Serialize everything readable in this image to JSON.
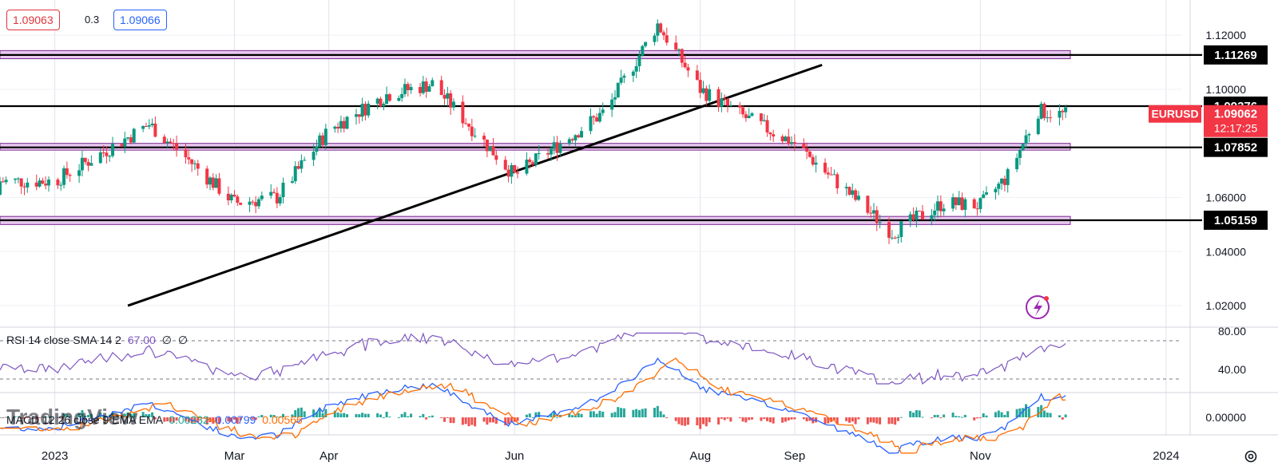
{
  "header": {
    "bid_price": "1.09063",
    "spread": "0.3",
    "ask_price": "1.09066"
  },
  "symbol": {
    "name": "EURUSD",
    "last_price": "1.09062",
    "countdown": "12:17:25"
  },
  "levels": [
    {
      "label": "1.11269",
      "value": 1.11269,
      "zone": [
        1.1113,
        1.1143
      ]
    },
    {
      "label": "1.09376",
      "value": 1.09376,
      "zone": null
    },
    {
      "label": "1.07852",
      "value": 1.07852,
      "zone": [
        1.0775,
        1.08
      ]
    },
    {
      "label": "1.05159",
      "value": 1.05159,
      "zone": [
        1.05,
        1.053
      ]
    }
  ],
  "price_axis": {
    "ticks": [
      "1.12000",
      "1.10000",
      "1.06000",
      "1.04000",
      "1.02000"
    ],
    "tick_values": [
      1.12,
      1.1,
      1.06,
      1.04,
      1.02
    ]
  },
  "time_axis": {
    "labels": [
      "2023",
      "Mar",
      "Apr",
      "Jun",
      "Aug",
      "Sep",
      "Nov",
      "2024"
    ]
  },
  "rsi": {
    "label": "RSI 14 close SMA 14 2",
    "value": "67.00",
    "extra1": "∅",
    "extra2": "∅",
    "ticks": [
      "80.00",
      "40.00"
    ]
  },
  "macd": {
    "label": "MACD 12 26 close 9 EMA EMA",
    "histogram": "0.00232",
    "macd_value": "0.00799",
    "signal_value": "0.00566",
    "ticks": [
      "0.00000"
    ]
  },
  "watermark": "TradingView",
  "colors": {
    "up": "#089981",
    "down": "#f23645",
    "zone_fill": "#e8c7ef",
    "zone_border": "#7a2b8f",
    "rsi_line": "#7e57c2",
    "macd_line": "#2962ff",
    "signal_line": "#ff6d00",
    "label_black": "#000000",
    "symbol_red": "#f23645"
  },
  "chart_data": {
    "type": "candlestick",
    "instrument": "EURUSD",
    "price_range": [
      1.015,
      1.133
    ],
    "key_closes": [
      {
        "x": "2023-01-01",
        "y": 1.066
      },
      {
        "x": "2023-02-01",
        "y": 1.087
      },
      {
        "x": "2023-02-10",
        "y": 1.078
      },
      {
        "x": "2023-03-01",
        "y": 1.058
      },
      {
        "x": "2023-03-15",
        "y": 1.06
      },
      {
        "x": "2023-04-01",
        "y": 1.085
      },
      {
        "x": "2023-04-20",
        "y": 1.098
      },
      {
        "x": "2023-05-05",
        "y": 1.102
      },
      {
        "x": "2023-06-01",
        "y": 1.068
      },
      {
        "x": "2023-07-01",
        "y": 1.092
      },
      {
        "x": "2023-07-18",
        "y": 1.124
      },
      {
        "x": "2023-08-01",
        "y": 1.1
      },
      {
        "x": "2023-08-15",
        "y": 1.09
      },
      {
        "x": "2023-09-01",
        "y": 1.08
      },
      {
        "x": "2023-10-03",
        "y": 1.047
      },
      {
        "x": "2023-10-20",
        "y": 1.058
      },
      {
        "x": "2023-11-01",
        "y": 1.057
      },
      {
        "x": "2023-11-10",
        "y": 1.068
      },
      {
        "x": "2023-11-20",
        "y": 1.092
      },
      {
        "x": "2023-11-28",
        "y": 1.09062
      }
    ],
    "trendline": {
      "from": {
        "x": "2023-01-25",
        "y": 1.02
      },
      "to": {
        "x": "2023-09-10",
        "y": 1.109
      }
    },
    "rsi_range": [
      20,
      80
    ],
    "rsi_latest": 67.0,
    "macd_latest": {
      "histogram": 0.00232,
      "macd": 0.00799,
      "signal": 0.00566
    }
  }
}
